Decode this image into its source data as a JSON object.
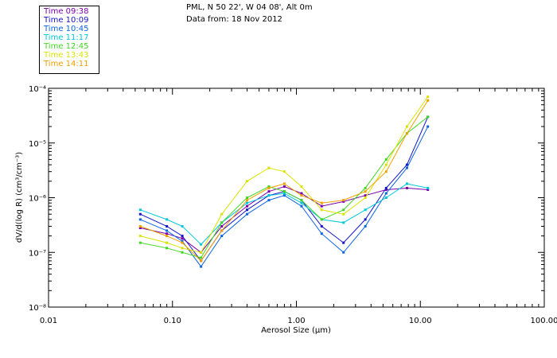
{
  "header": {
    "location": "PML, N 50 22', W 04 08', Alt 0m",
    "date_line": "Data from: 18 Nov 2012"
  },
  "chart_data": {
    "type": "line",
    "xscale": "log",
    "yscale": "log",
    "xlim": [
      0.01,
      100
    ],
    "ylim": [
      1e-08,
      0.0001
    ],
    "xlabel": "Aerosol Size (µm)",
    "ylabel": "dV/d(log R) (cm³/cm⁻³)",
    "x_ticks": [
      "0.01",
      "0.10",
      "1.00",
      "10.00",
      "100.00"
    ],
    "y_ticks": [
      "10⁻⁴",
      "10⁻⁵",
      "10⁻⁶",
      "10⁻⁷",
      "10⁻⁸"
    ],
    "legend_position": "top-left",
    "x": [
      0.055,
      0.09,
      0.12,
      0.17,
      0.25,
      0.4,
      0.6,
      0.8,
      1.1,
      1.6,
      2.4,
      3.6,
      5.3,
      7.8,
      11.5
    ],
    "series": [
      {
        "name": "Time 09:38",
        "color": "#7a00a8",
        "values": [
          2.8e-07,
          2.2e-07,
          1.8e-07,
          1e-07,
          3e-07,
          7e-07,
          1.3e-06,
          1.6e-06,
          1.2e-06,
          7e-07,
          8.5e-07,
          1.1e-06,
          1.4e-06,
          1.5e-06,
          1.4e-06
        ]
      },
      {
        "name": "Time 10:09",
        "color": "#1414c8",
        "values": [
          5e-07,
          3e-07,
          2e-07,
          7e-08,
          2.5e-07,
          6e-07,
          1.1e-06,
          1.3e-06,
          9e-07,
          3e-07,
          1.5e-07,
          4e-07,
          1.5e-06,
          4e-06,
          3e-05
        ]
      },
      {
        "name": "Time 10:45",
        "color": "#0c64e0",
        "values": [
          4e-07,
          2.5e-07,
          1.6e-07,
          5.5e-08,
          2e-07,
          5e-07,
          9e-07,
          1.1e-06,
          7e-07,
          2.2e-07,
          1e-07,
          3e-07,
          1.2e-06,
          3.5e-06,
          2e-05
        ]
      },
      {
        "name": "Time 11:17",
        "color": "#00c8d8",
        "values": [
          6e-07,
          4e-07,
          3e-07,
          1.4e-07,
          3.5e-07,
          8e-07,
          1.1e-06,
          1.2e-06,
          8e-07,
          4e-07,
          3.5e-07,
          6e-07,
          1e-06,
          1.8e-06,
          1.5e-06
        ]
      },
      {
        "name": "Time 12:45",
        "color": "#40d820",
        "values": [
          1.5e-07,
          1.2e-07,
          1e-07,
          8e-08,
          3.5e-07,
          1e-06,
          1.6e-06,
          1.3e-06,
          9e-07,
          4e-07,
          6e-07,
          1.5e-06,
          5e-06,
          1.5e-05,
          3e-05
        ]
      },
      {
        "name": "Time 13:43",
        "color": "#d8e400",
        "values": [
          2e-07,
          1.5e-07,
          1.2e-07,
          1e-07,
          5e-07,
          2e-06,
          3.5e-06,
          3e-06,
          1.6e-06,
          6e-07,
          5e-07,
          1e-06,
          4e-06,
          2e-05,
          7e-05
        ]
      },
      {
        "name": "Time 14:11",
        "color": "#f0a000",
        "values": [
          3e-07,
          2e-07,
          1.5e-07,
          7e-08,
          2.5e-07,
          9e-07,
          1.5e-06,
          1.8e-06,
          1.1e-06,
          8e-07,
          9e-07,
          1.3e-06,
          3e-06,
          1.5e-05,
          6e-05
        ]
      }
    ]
  }
}
